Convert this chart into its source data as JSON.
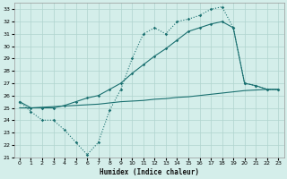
{
  "xlabel": "Humidex (Indice chaleur)",
  "ylabel": "",
  "bg_color": "#d4eeea",
  "grid_color": "#b0d4ce",
  "line_color": "#1a7070",
  "xlim": [
    -0.5,
    23.5
  ],
  "ylim": [
    21,
    33.5
  ],
  "yticks": [
    21,
    22,
    23,
    24,
    25,
    26,
    27,
    28,
    29,
    30,
    31,
    32,
    33
  ],
  "xticks": [
    0,
    1,
    2,
    3,
    4,
    5,
    6,
    7,
    8,
    9,
    10,
    11,
    12,
    13,
    14,
    15,
    16,
    17,
    18,
    19,
    20,
    21,
    22,
    23
  ],
  "line1_x": [
    0,
    1,
    2,
    3,
    4,
    5,
    6,
    7,
    8,
    9,
    10,
    11,
    12,
    13,
    14,
    15,
    16,
    17,
    18,
    19,
    20,
    21,
    22,
    23
  ],
  "line1_y": [
    25.5,
    24.7,
    24.0,
    24.0,
    23.2,
    22.2,
    21.2,
    22.2,
    24.8,
    26.5,
    29.0,
    31.0,
    31.5,
    31.0,
    32.0,
    32.2,
    32.5,
    33.0,
    33.2,
    31.5,
    27.0,
    26.8,
    26.5,
    26.5
  ],
  "line2_x": [
    0,
    1,
    2,
    3,
    4,
    5,
    6,
    7,
    8,
    9,
    10,
    11,
    12,
    13,
    14,
    15,
    16,
    17,
    18,
    19,
    20,
    21,
    22,
    23
  ],
  "line2_y": [
    25.5,
    25.0,
    25.0,
    25.0,
    25.2,
    25.5,
    25.8,
    26.0,
    26.5,
    27.0,
    27.8,
    28.5,
    29.2,
    29.8,
    30.5,
    31.2,
    31.5,
    31.8,
    32.0,
    31.5,
    27.0,
    26.8,
    26.5,
    26.5
  ],
  "line3_x": [
    0,
    1,
    2,
    3,
    4,
    5,
    6,
    7,
    8,
    9,
    10,
    11,
    12,
    13,
    14,
    15,
    16,
    17,
    18,
    19,
    20,
    21,
    22,
    23
  ],
  "line3_y": [
    25.0,
    25.0,
    25.05,
    25.1,
    25.15,
    25.2,
    25.25,
    25.3,
    25.4,
    25.5,
    25.55,
    25.6,
    25.7,
    25.75,
    25.85,
    25.9,
    26.0,
    26.1,
    26.2,
    26.3,
    26.4,
    26.45,
    26.5,
    26.5
  ]
}
